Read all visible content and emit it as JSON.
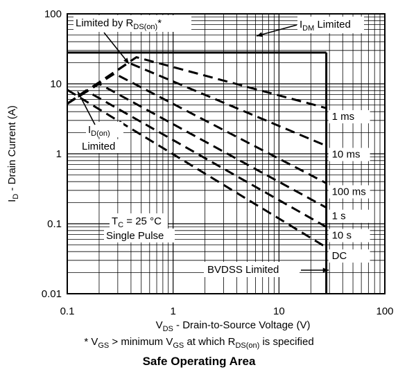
{
  "chart_data": {
    "type": "line",
    "title": "Safe Operating Area",
    "xscale": "log",
    "yscale": "log",
    "xlim": [
      0.1,
      100
    ],
    "ylim": [
      0.01,
      100
    ],
    "x_ticks": [
      "0.1",
      "1",
      "10",
      "100"
    ],
    "y_ticks": [
      "0.01",
      "0.1",
      "1",
      "10",
      "100"
    ],
    "x_tick_values": [
      0.1,
      1,
      10,
      100
    ],
    "y_tick_values": [
      0.01,
      0.1,
      1,
      10,
      100
    ],
    "xlabel": {
      "main": "V",
      "sub": "DS",
      "rest": " - Drain-to-Source Voltage (V)"
    },
    "ylabel": {
      "main": "I",
      "sub": "D",
      "rest": " - Drain Current (A)"
    },
    "grid": true,
    "boundaries": [
      {
        "name": "IDM Limited",
        "points": [
          [
            0.1,
            28
          ],
          [
            28,
            28
          ]
        ]
      },
      {
        "name": "BVDSS Limited",
        "points": [
          [
            28,
            28
          ],
          [
            28,
            0.01
          ]
        ]
      }
    ],
    "series": [
      {
        "name": "1 ms",
        "points": [
          [
            0.1,
            5.2
          ],
          [
            0.45,
            24
          ],
          [
            28,
            4.5
          ]
        ]
      },
      {
        "name": "10 ms",
        "points": [
          [
            0.1,
            5.2
          ],
          [
            0.38,
            20
          ],
          [
            28,
            1.3
          ]
        ]
      },
      {
        "name": "100 ms",
        "points": [
          [
            0.1,
            5.2
          ],
          [
            0.28,
            14
          ],
          [
            28,
            0.38
          ]
        ]
      },
      {
        "name": "1 s",
        "points": [
          [
            0.1,
            5.2
          ],
          [
            0.2,
            10
          ],
          [
            28,
            0.17
          ]
        ]
      },
      {
        "name": "10 s",
        "points": [
          [
            0.1,
            5.2
          ],
          [
            0.15,
            8
          ],
          [
            28,
            0.09
          ]
        ]
      },
      {
        "name": "DC",
        "points": [
          [
            0.1,
            8.2
          ],
          [
            28,
            0.046
          ]
        ]
      }
    ],
    "annotations": {
      "rds": {
        "pre": "Limited by R",
        "sub": "DS(on)",
        "post": "*"
      },
      "idm": {
        "pre": "I",
        "sub": "DM",
        "post": " Limited"
      },
      "idon_line1": {
        "pre": "I",
        "sub": "D(on)"
      },
      "idon_line2": "Limited",
      "tc": {
        "pre": "T",
        "sub": "C",
        "post": " = 25 °C"
      },
      "pulse": "Single Pulse",
      "bvdss": "BVDSS Limited"
    }
  },
  "footnote": {
    "star": "* V",
    "vgs_sub": "GS",
    "mid": "  > minimum V",
    "vgs_sub2": "GS",
    "mid2": " at which R",
    "rds_sub": "DS(on)",
    "end": " is specified"
  },
  "caption": "Safe Operating Area"
}
